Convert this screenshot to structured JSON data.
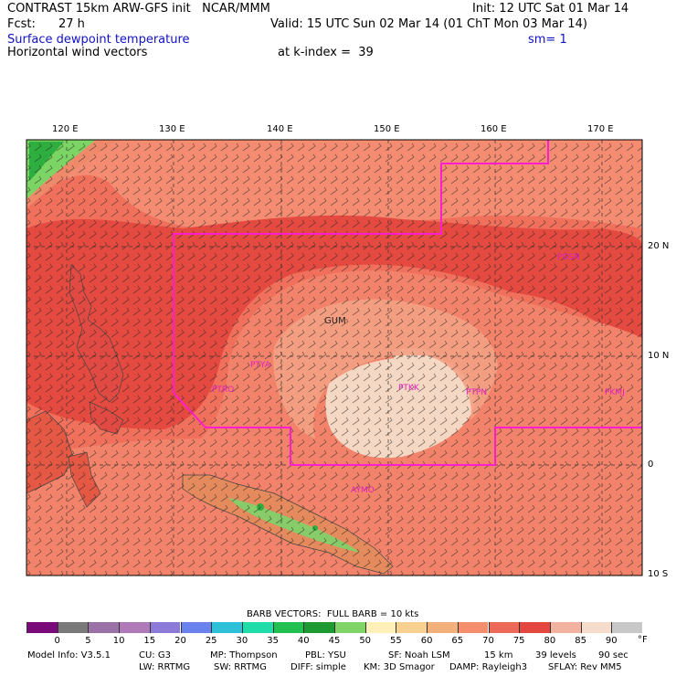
{
  "header": {
    "title_left": "CONTRAST 15km ARW-GFS init   NCAR/MMM",
    "init": "Init: 12 UTC Sat 01 Mar 14",
    "fcst_label": "Fcst:",
    "fcst_value": "27 h",
    "valid": "Valid: 15 UTC Sun 02 Mar 14 (01 ChT Mon 03 Mar 14)",
    "field": "Surface dewpoint temperature",
    "smoothing": "sm= 1",
    "vector_label": "Horizontal wind vectors",
    "level": "at k-index =  39"
  },
  "axes": {
    "lon_labels": [
      "120 E",
      "130 E",
      "140 E",
      "150 E",
      "160 E",
      "170 E"
    ],
    "lat_labels": [
      "20 N",
      "10 N",
      "0",
      "10 S"
    ]
  },
  "stations": [
    "GUM",
    "PKMJ",
    "PTKK",
    "PTPN",
    "PTRO",
    "PTYA",
    "PGSN",
    "AYMO"
  ],
  "colorbar": {
    "title": "BARB VECTORS:  FULL BARB = 10 kts",
    "units": "°F",
    "labels": [
      "0",
      "5",
      "10",
      "15",
      "20",
      "25",
      "30",
      "35",
      "40",
      "45",
      "50",
      "55",
      "60",
      "65",
      "70",
      "75",
      "80",
      "85",
      "90"
    ],
    "colors": [
      "#7a0a7a",
      "#7a7a7a",
      "#9a72a8",
      "#b07ab8",
      "#8c7ad8",
      "#6a82ee",
      "#2ec0d8",
      "#20dca8",
      "#22c050",
      "#1e9a32",
      "#80d468",
      "#fff0b8",
      "#f8d090",
      "#f4b07a",
      "#f48e6c",
      "#ee6a58",
      "#e44640",
      "#f2b2a0",
      "#f5dccb",
      "#c8c8c8"
    ]
  },
  "footer": {
    "line1": [
      "Model Info: V3.5.1",
      "CU: G3",
      "MP: Thompson",
      "PBL: YSU",
      "SF: Noah LSM",
      "15 km",
      "39 levels",
      "90 sec"
    ],
    "line2": [
      "LW: RRTMG",
      "SW: RRTMG",
      "DIFF: simple",
      "KM: 3D Smagor",
      "DAMP: Rayleigh3",
      "SFLAY: Rev MM5"
    ]
  }
}
